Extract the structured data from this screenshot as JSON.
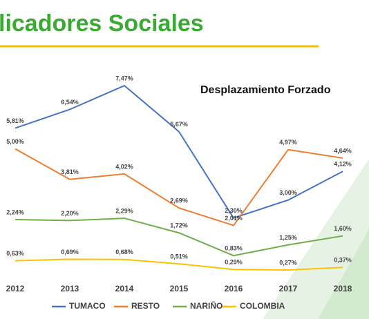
{
  "chart_data": {
    "type": "line",
    "title": "licadores Sociales",
    "subtitle": "Desplazamiento Forzado",
    "categories": [
      "2012",
      "2013",
      "2014",
      "2015",
      "2016",
      "2017",
      "2018"
    ],
    "series": [
      {
        "name": "TUMACO",
        "color": "#4472c4",
        "values": [
          5.81,
          6.54,
          7.47,
          5.67,
          2.3,
          3.0,
          4.12
        ],
        "value_labels": [
          "5,81%",
          "6,54%",
          "7,47%",
          "5,67%",
          "2,30%",
          "3,00%",
          "4,12%"
        ]
      },
      {
        "name": "RESTO",
        "color": "#ed7d31",
        "values": [
          5.0,
          3.81,
          4.02,
          2.69,
          2.01,
          4.97,
          4.64
        ],
        "value_labels": [
          "5,00%",
          "3,81%",
          "4,02%",
          "2,69%",
          "2,01%",
          "4,97%",
          "4,64%"
        ]
      },
      {
        "name": "NARIÑO",
        "color": "#70ad47",
        "values": [
          2.24,
          2.2,
          2.29,
          1.72,
          0.83,
          1.25,
          1.6
        ],
        "value_labels": [
          "2,24%",
          "2,20%",
          "2,29%",
          "1,72%",
          "0,83%",
          "1,25%",
          "1,60%"
        ]
      },
      {
        "name": "COLOMBIA",
        "color": "#ffc000",
        "values": [
          0.63,
          0.69,
          0.68,
          0.51,
          0.29,
          0.27,
          0.37
        ],
        "value_labels": [
          "0,63%",
          "0,69%",
          "0,68%",
          "0,51%",
          "0,29%",
          "0,27%",
          "0,37%"
        ]
      }
    ]
  }
}
